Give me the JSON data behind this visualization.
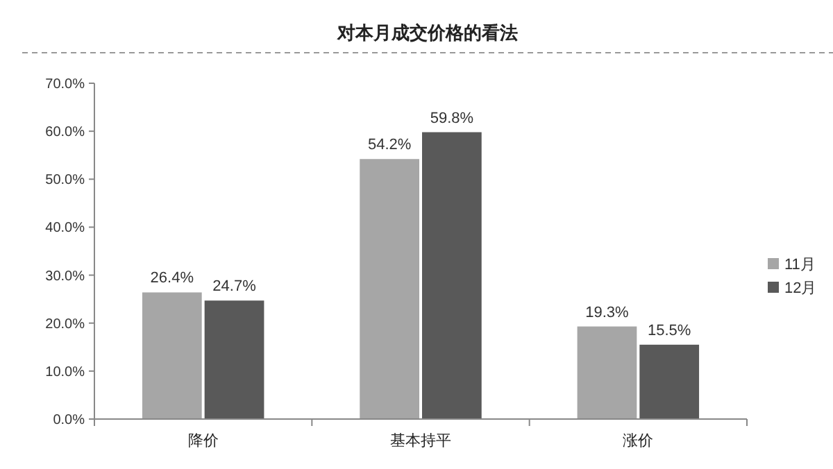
{
  "chart_data": {
    "type": "bar",
    "title": "对本月成交价格的看法",
    "categories": [
      "降价",
      "基本持平",
      "涨价"
    ],
    "series": [
      {
        "name": "11月",
        "color": "#a6a6a6",
        "values": [
          26.4,
          54.2,
          19.3
        ],
        "value_labels": [
          "26.4%",
          "54.2%",
          "19.3%"
        ]
      },
      {
        "name": "12月",
        "color": "#595959",
        "values": [
          24.7,
          59.8,
          15.5
        ],
        "value_labels": [
          "24.7%",
          "59.8%",
          "15.5%"
        ]
      }
    ],
    "ylim": [
      0,
      70
    ],
    "yticks": [
      {
        "value": 0,
        "label": "0.0%"
      },
      {
        "value": 10,
        "label": "10.0%"
      },
      {
        "value": 20,
        "label": "20.0%"
      },
      {
        "value": 30,
        "label": "30.0%"
      },
      {
        "value": 40,
        "label": "40.0%"
      },
      {
        "value": 50,
        "label": "50.0%"
      },
      {
        "value": 60,
        "label": "60.0%"
      },
      {
        "value": 70,
        "label": "70.0%"
      }
    ],
    "grid": false,
    "legend": "right"
  }
}
